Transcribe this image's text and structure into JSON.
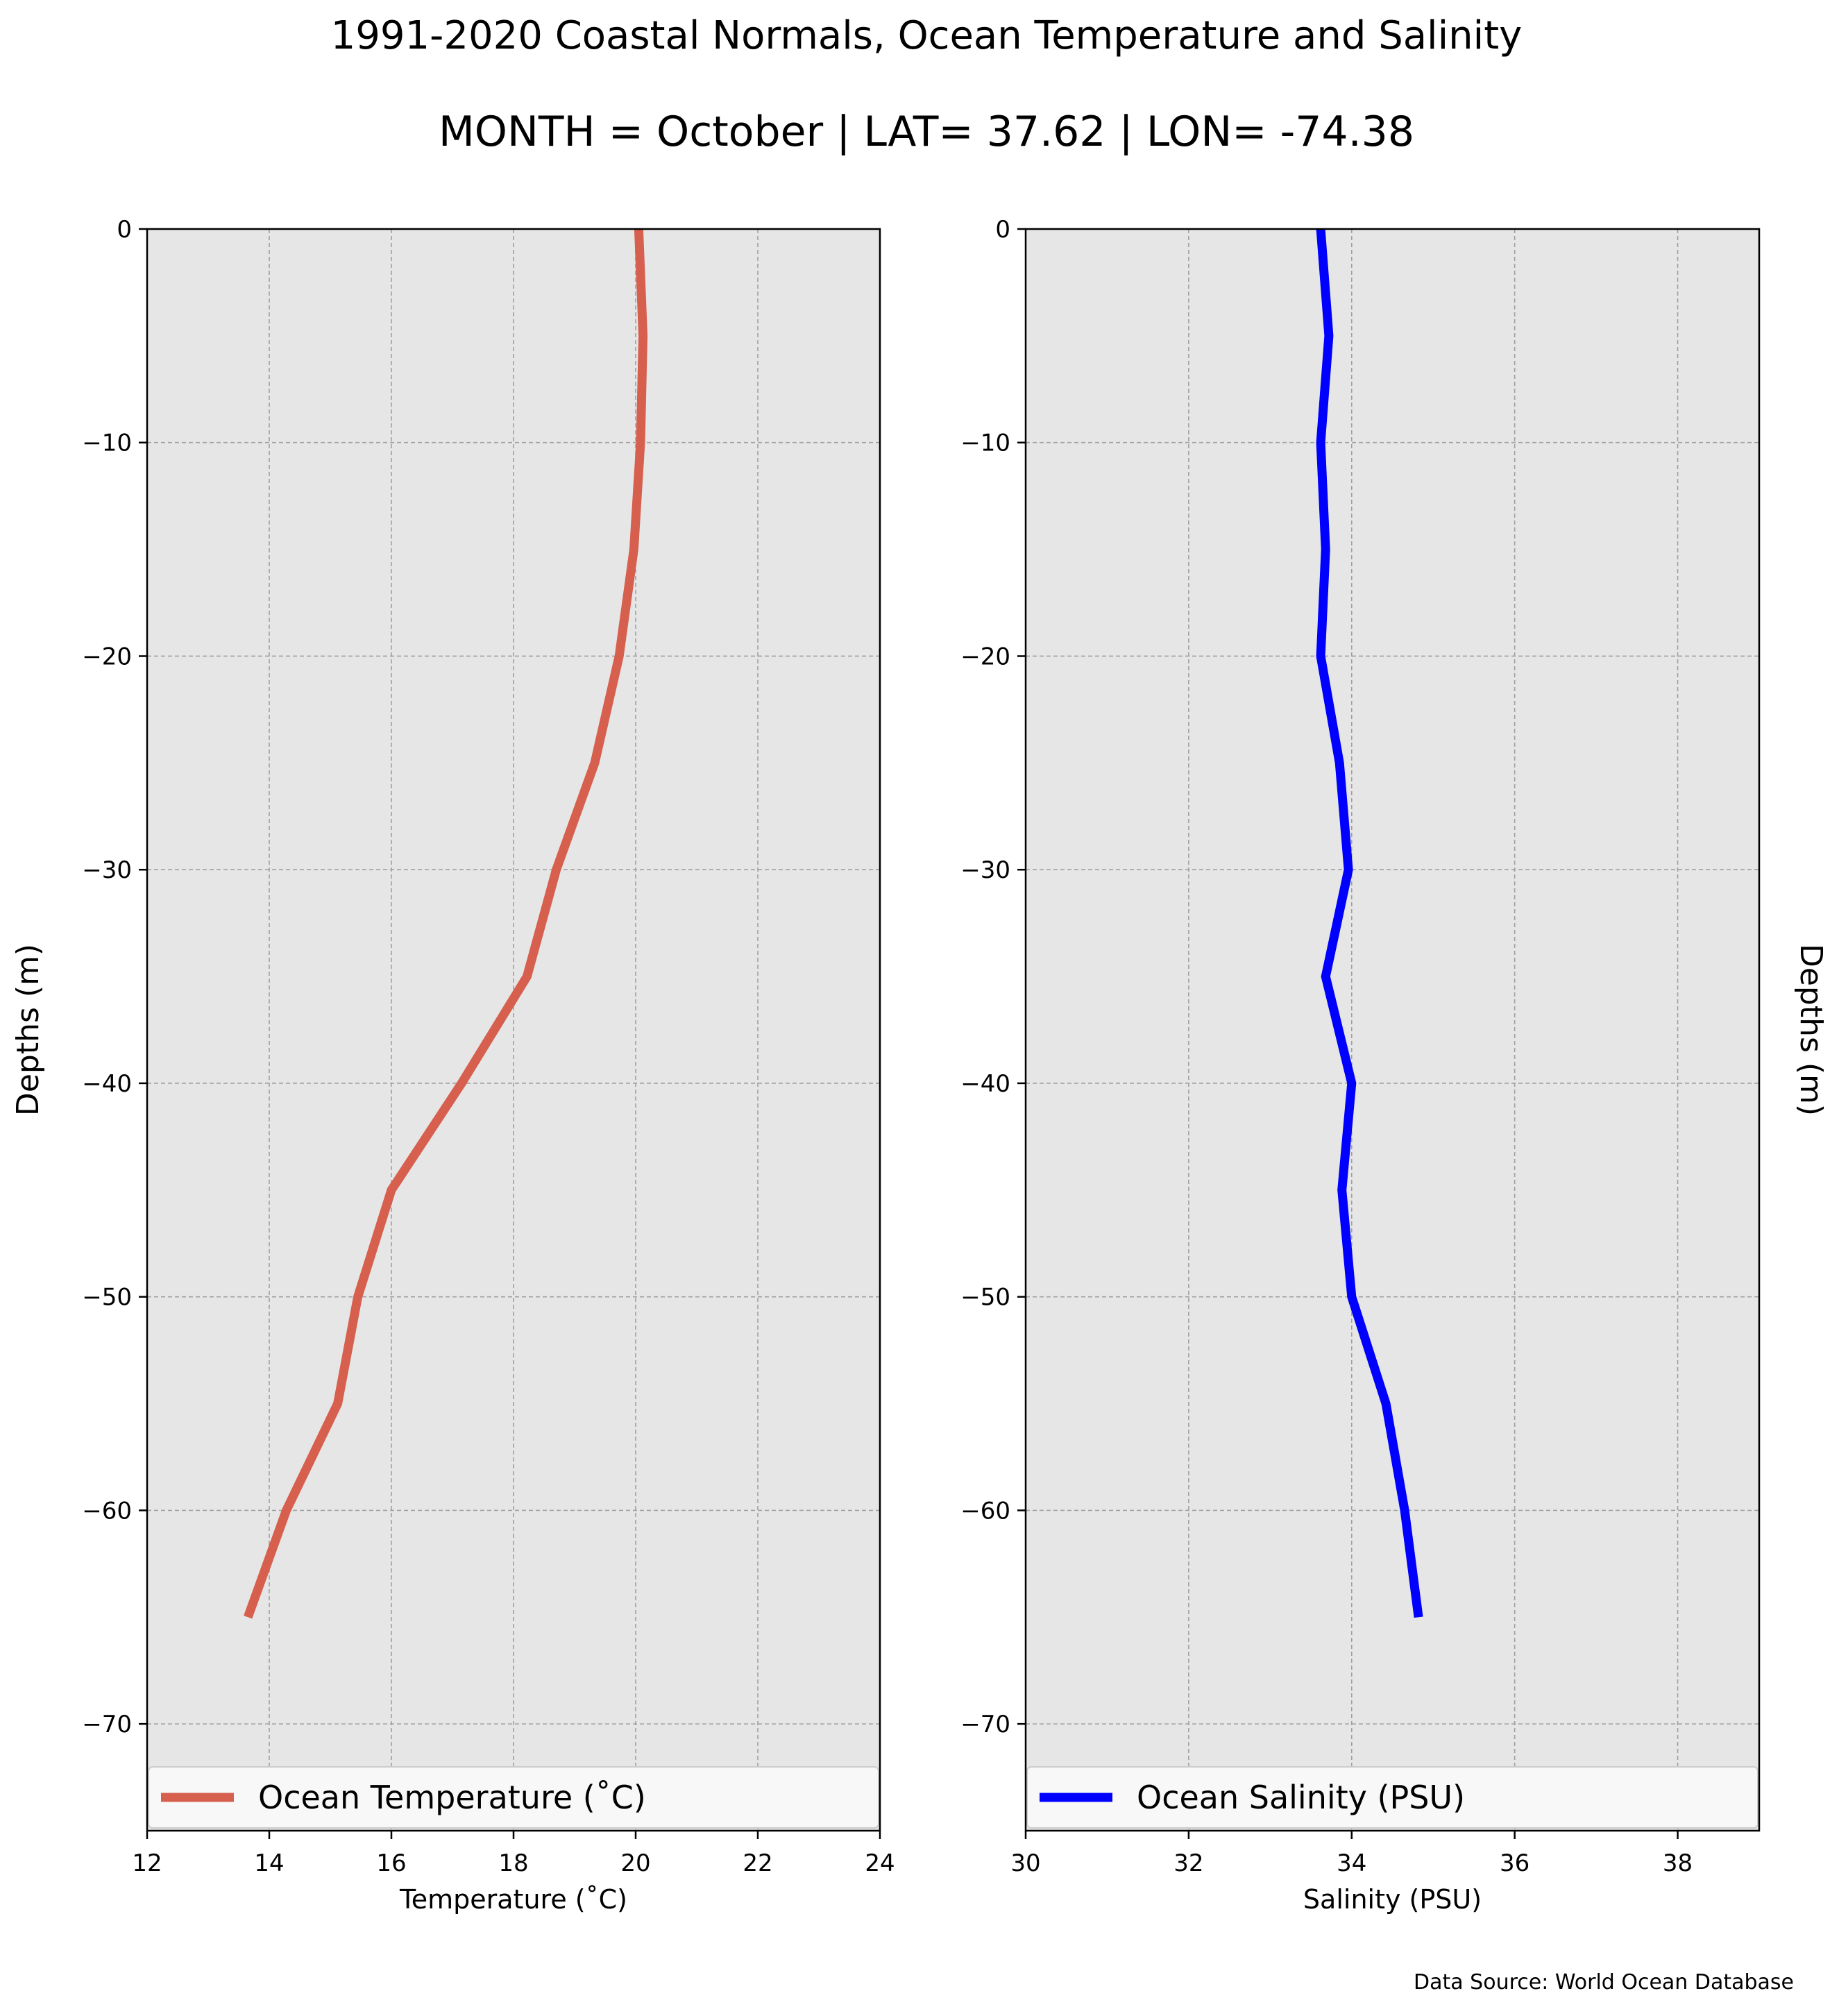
{
  "title": "1991-2020 Coastal Normals, Ocean Temperature and Salinity",
  "subtitle": "MONTH = October | LAT= 37.62 | LON= -74.38",
  "source_note": "Data Source: World Ocean Database",
  "colors": {
    "panel_bg": "#e6e6e6",
    "grid": "#a0a0a0",
    "temperature_line": "#d65f4e",
    "salinity_line": "#0000ff"
  },
  "chart_data": [
    {
      "type": "line",
      "xlabel": "Temperature ($^\\circ$C)",
      "xlabel_display": "Temperature (˚C)",
      "ylabel": "Depths (m)",
      "ylabel_side": "left",
      "xlim": [
        12,
        24
      ],
      "ylim": [
        -75,
        0
      ],
      "xticks": [
        12,
        14,
        16,
        18,
        20,
        22,
        24
      ],
      "yticks": [
        0,
        -10,
        -20,
        -30,
        -40,
        -50,
        -60,
        -70
      ],
      "ytick_labels": [
        "0",
        "−10",
        "−20",
        "−30",
        "−40",
        "−50",
        "−60",
        "−70"
      ],
      "grid": true,
      "legend_position": "bottom",
      "series": [
        {
          "name": "Ocean Temperature (˚C)",
          "color": "#d65f4e",
          "x": [
            20.05,
            20.12,
            20.08,
            19.97,
            19.73,
            19.33,
            18.7,
            18.22,
            17.15,
            16.0,
            15.45,
            15.12,
            14.28,
            13.65
          ],
          "y": [
            0,
            -5,
            -10,
            -15,
            -20,
            -25,
            -30,
            -35,
            -40,
            -45,
            -50,
            -55,
            -60,
            -65
          ]
        }
      ]
    },
    {
      "type": "line",
      "xlabel": "Salinity (PSU)",
      "ylabel": "Depths (m)",
      "ylabel_side": "right",
      "xlim": [
        30,
        39
      ],
      "ylim": [
        -75,
        0
      ],
      "xticks": [
        30,
        32,
        34,
        36,
        38
      ],
      "yticks": [
        0,
        -10,
        -20,
        -30,
        -40,
        -50,
        -60,
        -70
      ],
      "ytick_labels": [
        "0",
        "−10",
        "−20",
        "−30",
        "−40",
        "−50",
        "−60",
        "−70"
      ],
      "grid": true,
      "legend_position": "bottom",
      "series": [
        {
          "name": "Ocean Salinity (PSU)",
          "color": "#0000ff",
          "x": [
            33.62,
            33.72,
            33.62,
            33.68,
            33.62,
            33.85,
            33.96,
            33.68,
            34.0,
            33.88,
            34.0,
            34.42,
            34.65,
            34.82
          ],
          "y": [
            0,
            -5,
            -10,
            -15,
            -20,
            -25,
            -30,
            -35,
            -40,
            -45,
            -50,
            -55,
            -60,
            -65
          ]
        }
      ]
    }
  ]
}
